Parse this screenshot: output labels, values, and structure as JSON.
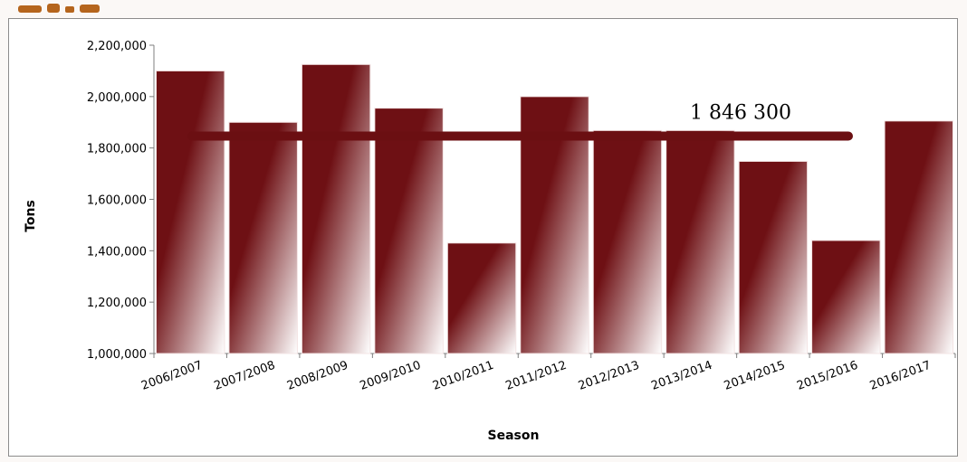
{
  "colors": {
    "bar_dark": "#6e1014",
    "bar_light": "#ffffff",
    "average_line": "#6b0f12",
    "gridline": "#d9d9d9",
    "axis": "#7f7f7f",
    "header_text": "#b5651d"
  },
  "chart_data": {
    "type": "bar",
    "title": "",
    "xlabel": "Season",
    "ylabel": "Tons",
    "ylim": [
      1000000,
      2200000
    ],
    "y_ticks": [
      1000000,
      1200000,
      1400000,
      1600000,
      1800000,
      2000000,
      2200000
    ],
    "y_tick_labels": [
      "1,000,000",
      "1,200,000",
      "1,400,000",
      "1,600,000",
      "1,800,000",
      "2,000,000",
      "2,200,000"
    ],
    "categories": [
      "2006/2007",
      "2007/2008",
      "2008/2009",
      "2009/2010",
      "2010/2011",
      "2011/2012",
      "2012/2013",
      "2013/2014",
      "2014/2015",
      "2015/2016",
      "2016/2017"
    ],
    "values": [
      2100000,
      1900000,
      2125000,
      1955000,
      1430000,
      2000000,
      1868000,
      1868000,
      1748000,
      1440000,
      1905000
    ],
    "average": {
      "value": 1846300,
      "label": "1 846 300"
    },
    "grid": false,
    "legend": "none"
  }
}
